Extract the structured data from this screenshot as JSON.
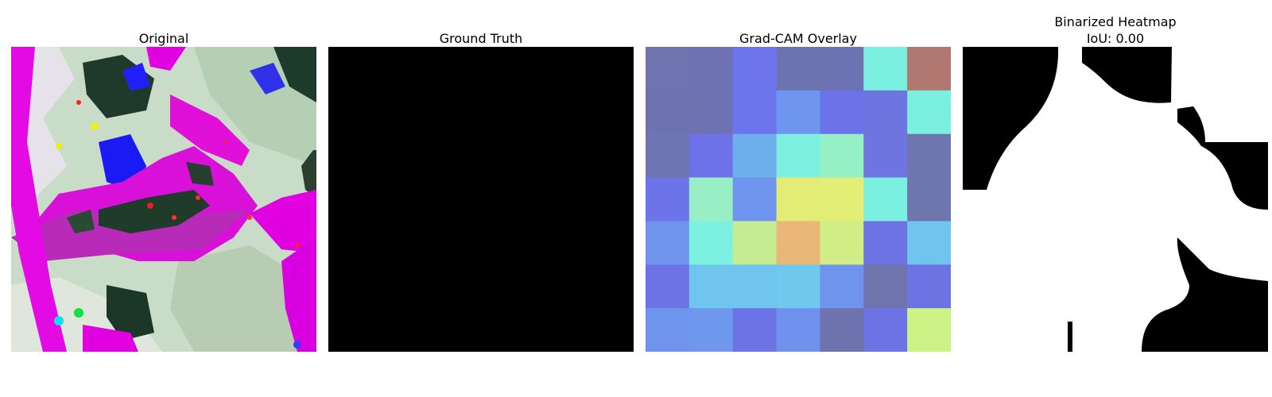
{
  "panels": [
    {
      "title": "Original"
    },
    {
      "title": "Ground Truth"
    },
    {
      "title": "Grad-CAM Overlay"
    },
    {
      "title": "Binarized Heatmap\nIoU: 0.00"
    }
  ],
  "gradcam_grid": {
    "rows": 7,
    "cols": 7,
    "cell_colors": [
      [
        "#6f74b0",
        "#6e72b2",
        "#6d74ee",
        "#6d73b1",
        "#6d73b2",
        "#7cf0e0",
        "#b07870"
      ],
      [
        "#6e73b0",
        "#6e72b2",
        "#6c74ee",
        "#6f96ef",
        "#6c73e9",
        "#6e75e0",
        "#7bf0e0"
      ],
      [
        "#6e75b2",
        "#6d72e8",
        "#6daeed",
        "#7df0df",
        "#96f0c6",
        "#6e75e0",
        "#6f76ad"
      ],
      [
        "#6d74ea",
        "#98efc6",
        "#6e94ed",
        "#e2ec77",
        "#e3ee76",
        "#7bf0e0",
        "#6f76ad"
      ],
      [
        "#6e94ed",
        "#7cf0e1",
        "#c6ec92",
        "#e9b878",
        "#d1ee86",
        "#6d73e2",
        "#6fc5ee"
      ],
      [
        "#6e74e6",
        "#6fc5ee",
        "#6fc5ee",
        "#6fc8ee",
        "#6e94ed",
        "#6f75ac",
        "#6d73e2"
      ],
      [
        "#6e94ed",
        "#6e98ee",
        "#6c73e4",
        "#6e92ed",
        "#6e72ad",
        "#6c73e4",
        "#cdf286"
      ]
    ]
  },
  "colors": {
    "ground_truth_fill": "#000000",
    "heatmap_foreground": "#ffffff",
    "heatmap_background": "#000000",
    "original_base": "#c6dcc6",
    "original_magenta": "#e400e4",
    "original_dark": "#1c3b2a",
    "original_blue": "#1a1aff"
  }
}
